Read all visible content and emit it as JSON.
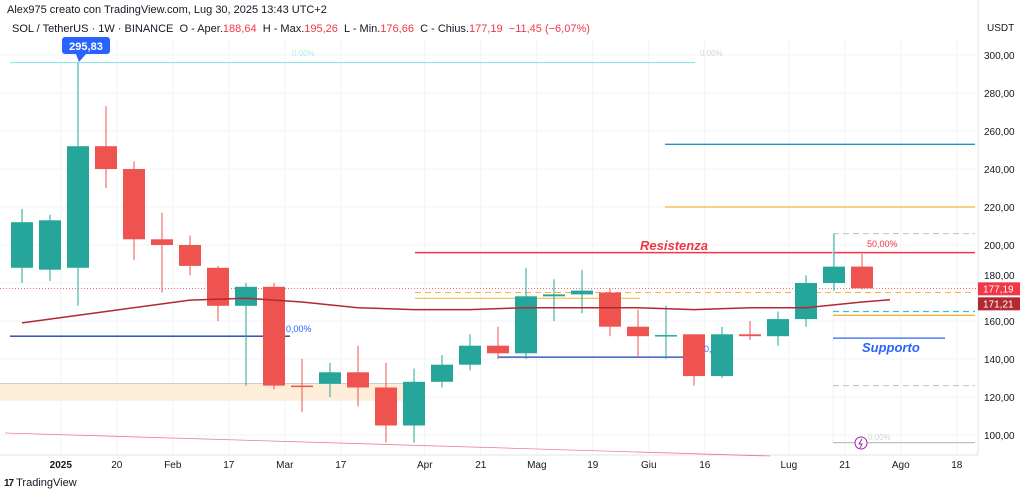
{
  "header": {
    "author_line": "Alex975 creato con TradingView.com, Lug 30, 2025 13:43 UTC+2",
    "symbol": "SOL / TetherUS · 1W · BINANCE",
    "open_label": "O - Aper.",
    "open": "188,64",
    "high_label": "H - Max.",
    "high": "195,26",
    "low_label": "L - Min.",
    "low": "176,66",
    "close_label": "C - Chius.",
    "close": "177,19",
    "change": "−11,45 (−6,07%)"
  },
  "footer": {
    "brand": "TradingView"
  },
  "colors": {
    "up": "#26a69a",
    "down": "#ef5350",
    "ma": "#b22833",
    "resist": "#f23645",
    "support": "#2962ff"
  },
  "chart_data": {
    "type": "candlestick",
    "currency": "USDT",
    "ylim": [
      88,
      310
    ],
    "yticks": [
      "300,00",
      "280,00",
      "260,00",
      "240,00",
      "220,00",
      "200,00",
      "180,00",
      "160,00",
      "140,00",
      "120,00",
      "100,00"
    ],
    "ytick_values": [
      300,
      280,
      260,
      240,
      220,
      200,
      180,
      160,
      140,
      120,
      100
    ],
    "xticks": [
      {
        "i": 1.1,
        "label": "2025"
      },
      {
        "i": 3.1,
        "label": "20"
      },
      {
        "i": 5.1,
        "label": "Feb"
      },
      {
        "i": 7.1,
        "label": "17"
      },
      {
        "i": 9.1,
        "label": "Mar"
      },
      {
        "i": 11.1,
        "label": "17"
      },
      {
        "i": 14.1,
        "label": "Apr"
      },
      {
        "i": 16.1,
        "label": "21"
      },
      {
        "i": 18.1,
        "label": "Mag"
      },
      {
        "i": 20.1,
        "label": "19"
      },
      {
        "i": 22.1,
        "label": "Giu"
      },
      {
        "i": 24.1,
        "label": "16"
      },
      {
        "i": 27.1,
        "label": "Lug"
      },
      {
        "i": 29.1,
        "label": "21"
      },
      {
        "i": 31.1,
        "label": "Ago"
      },
      {
        "i": 33.1,
        "label": "18"
      }
    ],
    "candles": [
      [
        188,
        219,
        180,
        212
      ],
      [
        187,
        216,
        181,
        213
      ],
      [
        188,
        295.83,
        168,
        252
      ],
      [
        252,
        273,
        230,
        240
      ],
      [
        240,
        244,
        192,
        203
      ],
      [
        203,
        217,
        175,
        200
      ],
      [
        200,
        205,
        184,
        189
      ],
      [
        188,
        189,
        160,
        168
      ],
      [
        168,
        180,
        126,
        178
      ],
      [
        178,
        180,
        124,
        126
      ],
      [
        126,
        140,
        112,
        125.5
      ],
      [
        127,
        138,
        120,
        133
      ],
      [
        133,
        147,
        115,
        125
      ],
      [
        125,
        138,
        96,
        105
      ],
      [
        105,
        135,
        96,
        128
      ],
      [
        128,
        142,
        125,
        137
      ],
      [
        137,
        153,
        134,
        147
      ],
      [
        147,
        157,
        140,
        143
      ],
      [
        143,
        188,
        140,
        173
      ],
      [
        173,
        182,
        160,
        174
      ],
      [
        174,
        187,
        164,
        176
      ],
      [
        175,
        177,
        152,
        157
      ],
      [
        157,
        166,
        141,
        152
      ],
      [
        152,
        168,
        140,
        152.6
      ],
      [
        153,
        153,
        126,
        131
      ],
      [
        131,
        157,
        130,
        153
      ],
      [
        153,
        160,
        150,
        152
      ],
      [
        152,
        165,
        147,
        161
      ],
      [
        161,
        184,
        157,
        180
      ],
      [
        180,
        206,
        176,
        188.6
      ],
      [
        188.64,
        195.26,
        176.66,
        177.19
      ]
    ],
    "ma": [
      [
        0,
        159
      ],
      [
        3,
        165
      ],
      [
        6,
        171
      ],
      [
        8,
        172
      ],
      [
        10,
        170
      ],
      [
        12,
        167
      ],
      [
        14,
        166
      ],
      [
        16,
        166
      ],
      [
        18,
        167
      ],
      [
        20,
        167
      ],
      [
        22,
        167
      ],
      [
        24,
        166
      ],
      [
        26,
        167
      ],
      [
        28,
        167
      ],
      [
        30,
        170
      ],
      [
        31,
        171.21
      ]
    ],
    "labels": {
      "high_callout": "295,83",
      "resistance": "Resistenza",
      "support": "Supporto",
      "fib_50": "50,00%",
      "fib_0_top": "0,00%",
      "fib_0_mid": "0,00%",
      "fib_0_right": "0,00%",
      "fib_0_bottom": "0,00%",
      "fib_0_small": "0,"
    },
    "price_tags": [
      {
        "value": 177.19,
        "text": "177,19",
        "color": "#f23645"
      },
      {
        "value": 171.21,
        "text": "171,21",
        "color": "#b22833"
      }
    ],
    "levels": {
      "resistance": 196,
      "support": 151,
      "top_teal": 253,
      "orange": 220,
      "fib_top": 296,
      "blue_left": 152,
      "blue_mid": 141
    }
  }
}
